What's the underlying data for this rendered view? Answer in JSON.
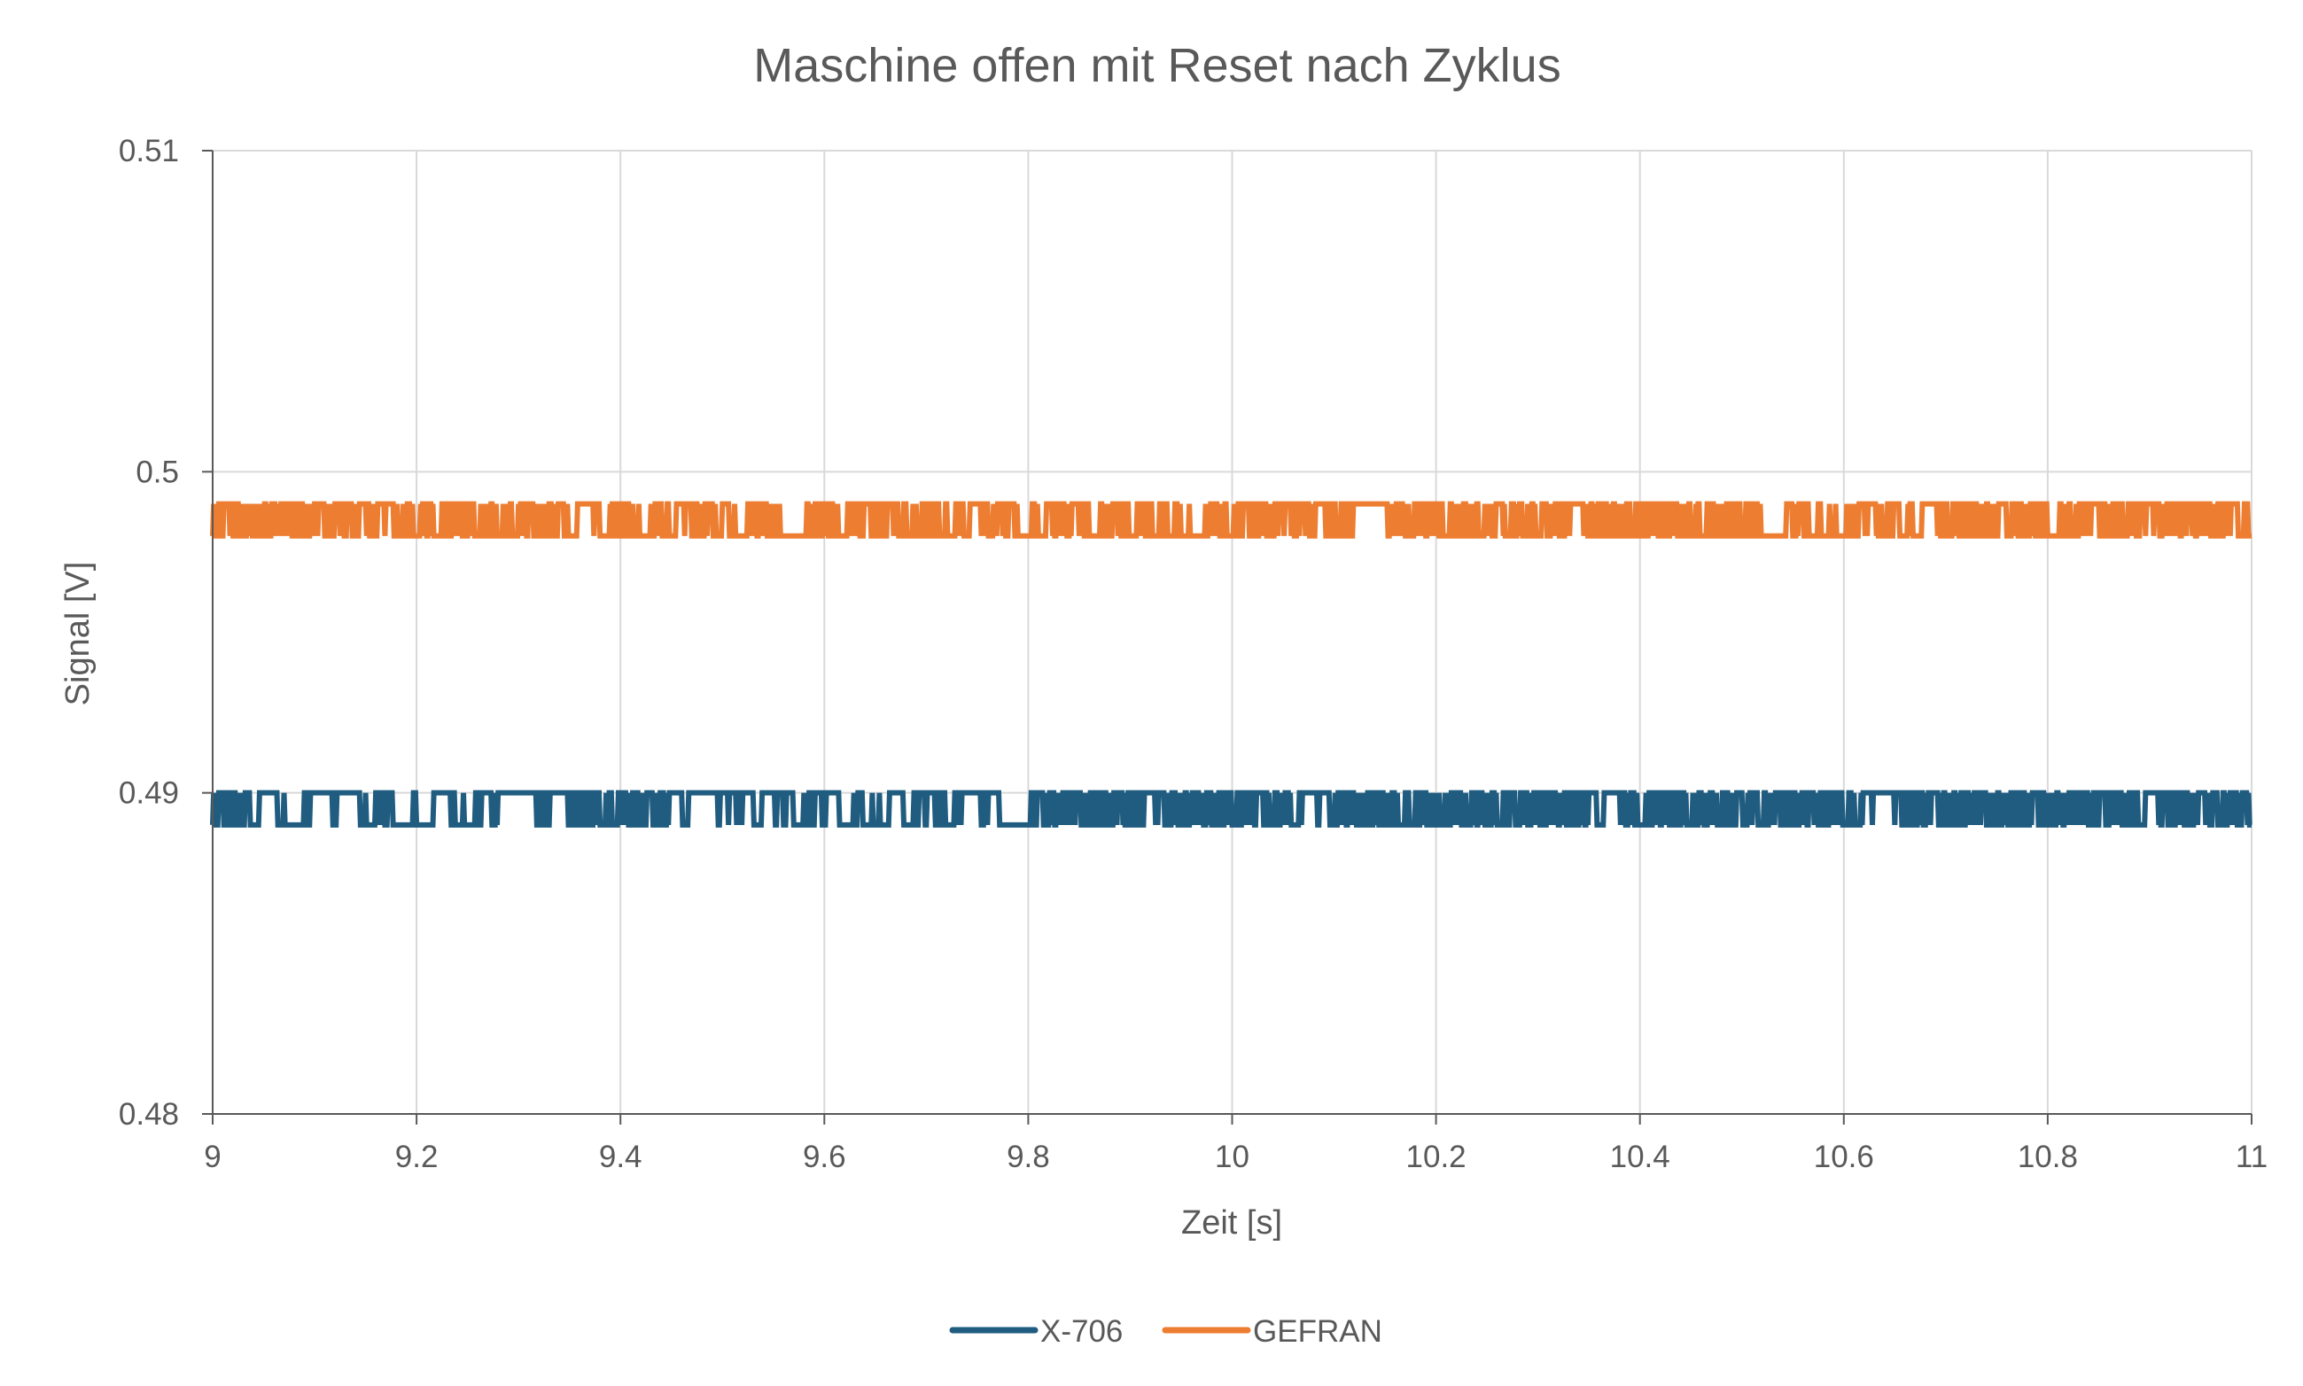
{
  "chart_data": {
    "type": "line",
    "title": "Maschine offen mit Reset nach Zyklus",
    "xlabel": "Zeit [s]",
    "ylabel": "Signal [V]",
    "xlim": [
      9,
      11
    ],
    "ylim": [
      0.48,
      0.51
    ],
    "x_ticks": [
      "9",
      "9.2",
      "9.4",
      "9.6",
      "9.8",
      "10",
      "10.2",
      "10.4",
      "10.6",
      "10.8",
      "11"
    ],
    "y_ticks": [
      "0.48",
      "0.49",
      "0.5",
      "0.51"
    ],
    "grid": true,
    "legend_position": "bottom",
    "sampling": {
      "x_start": 9,
      "x_end": 11,
      "step": 0.001
    },
    "series": [
      {
        "name": "X-706",
        "color": "#1f5c80",
        "levels": [
          0.489,
          0.49
        ],
        "segments": [
          {
            "x": [
              9.0,
              9.03
            ],
            "toggle_prob": 0.45
          },
          {
            "x": [
              9.03,
              9.1
            ],
            "toggle_prob": 0.2
          },
          {
            "x": [
              9.1,
              9.12
            ],
            "toggle_prob": 0.02
          },
          {
            "x": [
              9.12,
              9.17
            ],
            "toggle_prob": 0.15
          },
          {
            "x": [
              9.17,
              9.19
            ],
            "toggle_prob": 0.02
          },
          {
            "x": [
              9.19,
              9.28
            ],
            "toggle_prob": 0.18
          },
          {
            "x": [
              9.28,
              9.31
            ],
            "toggle_prob": 0.05
          },
          {
            "x": [
              9.31,
              9.46
            ],
            "toggle_prob": 0.35
          },
          {
            "x": [
              9.46,
              9.49
            ],
            "toggle_prob": 0.05
          },
          {
            "x": [
              9.49,
              9.77
            ],
            "toggle_prob": 0.2
          },
          {
            "x": [
              9.77,
              9.8
            ],
            "toggle_prob": 0.05
          },
          {
            "x": [
              9.8,
              10.0
            ],
            "toggle_prob": 0.4
          },
          {
            "x": [
              10.0,
              10.07
            ],
            "toggle_prob": 0.4
          },
          {
            "x": [
              10.07,
              10.1
            ],
            "toggle_prob": 0.06
          },
          {
            "x": [
              10.1,
              10.35
            ],
            "toggle_prob": 0.45
          },
          {
            "x": [
              10.35,
              10.38
            ],
            "toggle_prob": 0.06
          },
          {
            "x": [
              10.38,
              10.62
            ],
            "toggle_prob": 0.5
          },
          {
            "x": [
              10.62,
              10.65
            ],
            "toggle_prob": 0.06
          },
          {
            "x": [
              10.65,
              11.0
            ],
            "toggle_prob": 0.45
          }
        ]
      },
      {
        "name": "GEFRAN",
        "color": "#ed7d31",
        "levels": [
          0.498,
          0.499
        ],
        "segments": [
          {
            "x": [
              9.0,
              9.015
            ],
            "toggle_prob": 0.35
          },
          {
            "x": [
              9.015,
              9.35
            ],
            "toggle_prob": 0.4
          },
          {
            "x": [
              9.35,
              9.37
            ],
            "toggle_prob": 0.05
          },
          {
            "x": [
              9.37,
              9.56
            ],
            "toggle_prob": 0.35
          },
          {
            "x": [
              9.56,
              9.58
            ],
            "toggle_prob": 0.05
          },
          {
            "x": [
              9.58,
              9.95
            ],
            "toggle_prob": 0.35
          },
          {
            "x": [
              9.95,
              9.97
            ],
            "toggle_prob": 0.05
          },
          {
            "x": [
              9.97,
              10.13
            ],
            "toggle_prob": 0.35
          },
          {
            "x": [
              10.13,
              10.15
            ],
            "toggle_prob": 0.05
          },
          {
            "x": [
              10.15,
              10.52
            ],
            "toggle_prob": 0.45
          },
          {
            "x": [
              10.52,
              10.54
            ],
            "toggle_prob": 0.05
          },
          {
            "x": [
              10.54,
              10.67
            ],
            "toggle_prob": 0.35
          },
          {
            "x": [
              10.67,
              10.69
            ],
            "toggle_prob": 0.05
          },
          {
            "x": [
              10.69,
              10.98
            ],
            "toggle_prob": 0.4
          },
          {
            "x": [
              10.98,
              11.0
            ],
            "toggle_prob": 0.05
          }
        ]
      }
    ]
  }
}
